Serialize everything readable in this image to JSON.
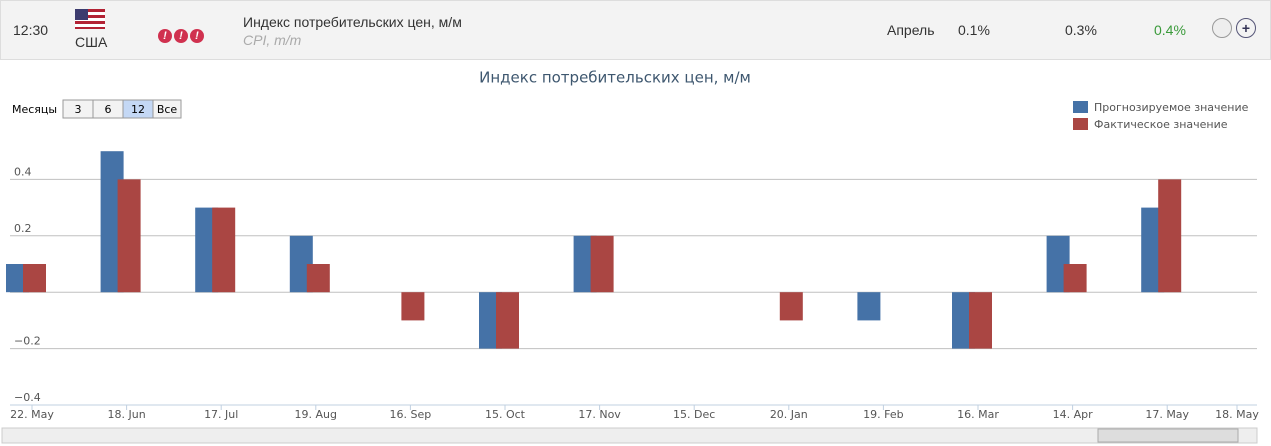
{
  "header": {
    "time": "12:30",
    "country": "США",
    "importance": [
      "!",
      "!",
      "!"
    ],
    "title": "Индекс потребительских цен, м/м",
    "subtitle": "CPI, m/m",
    "period": "Апрель",
    "previous": "0.1%",
    "forecast": "0.3%",
    "actual": "0.4%"
  },
  "range_selector": {
    "label": "Месяцы",
    "buttons": [
      "3",
      "6",
      "12",
      "Все"
    ]
  },
  "chart_data": {
    "type": "bar",
    "title": "Индекс потребительских цен, м/м",
    "categories": [
      "22. May",
      "18. Jun",
      "17. Jul",
      "19. Aug",
      "16. Sep",
      "15. Oct",
      "17. Nov",
      "15. Dec",
      "20. Jan",
      "19. Feb",
      "16. Mar",
      "14. Apr",
      "17. May",
      "18. May"
    ],
    "series": [
      {
        "name": "Прогнозируемое значение",
        "color": "#4572a7",
        "values": [
          0.1,
          0.5,
          0.3,
          0.2,
          0,
          -0.2,
          0.2,
          0,
          0,
          -0.1,
          -0.2,
          0.2,
          0.3,
          null
        ]
      },
      {
        "name": "Фактическое значение",
        "color": "#aa4643",
        "values": [
          0.1,
          0.4,
          0.3,
          0.1,
          -0.1,
          -0.2,
          0.2,
          0,
          -0.1,
          0,
          -0.2,
          0.1,
          0.4,
          null
        ]
      }
    ],
    "ylim": [
      -0.4,
      0.6
    ],
    "yticks": [
      {
        "value": -0.4,
        "label": "−0.4"
      },
      {
        "value": -0.2,
        "label": "−0.2"
      },
      0.2,
      0.4
    ],
    "grid": true,
    "legend": "top-right"
  }
}
